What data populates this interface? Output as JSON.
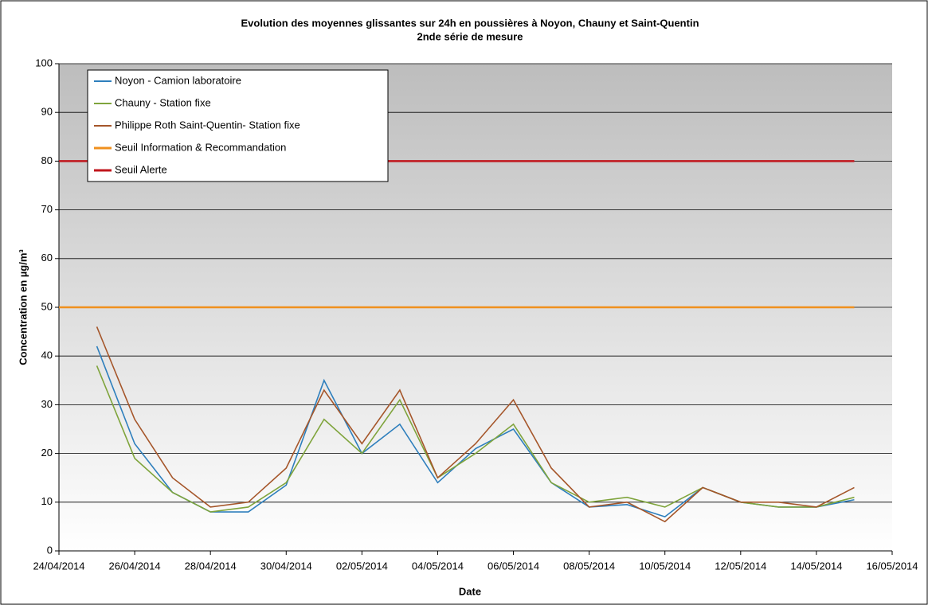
{
  "chart_data": {
    "type": "line",
    "title": "Evolution des moyennes glissantes sur 24h en poussières à Noyon, Chauny et Saint-Quentin",
    "subtitle": "2nde série de mesure",
    "x_label": "Date",
    "y_label": "Concentration en µg/m³",
    "x": [
      "24/04/2014",
      "25/04/2014",
      "26/04/2014",
      "27/04/2014",
      "28/04/2014",
      "29/04/2014",
      "30/04/2014",
      "01/05/2014",
      "02/05/2014",
      "03/05/2014",
      "04/05/2014",
      "05/05/2014",
      "06/05/2014",
      "07/05/2014",
      "08/05/2014",
      "09/05/2014",
      "10/05/2014",
      "11/05/2014",
      "12/05/2014",
      "13/05/2014",
      "14/05/2014",
      "15/05/2014"
    ],
    "series": [
      {
        "name": "Noyon - Camion laboratoire",
        "color": "#2e7fbd",
        "values": [
          null,
          42,
          22,
          12,
          8,
          8,
          13.5,
          35,
          20,
          26,
          14,
          21,
          25,
          14,
          9,
          9.5,
          7,
          13,
          10,
          9,
          9,
          10.5
        ]
      },
      {
        "name": "Chauny - Station fixe",
        "color": "#7fa43c",
        "values": [
          null,
          38,
          19,
          12,
          8,
          9,
          14,
          27,
          20,
          31,
          15,
          20,
          26,
          14,
          10,
          11,
          9,
          13,
          10,
          9,
          9,
          11
        ]
      },
      {
        "name": "Philippe Roth Saint-Quentin- Station fixe",
        "color": "#a5562a",
        "values": [
          null,
          46,
          27,
          15,
          9,
          10,
          17,
          33,
          22,
          33,
          15,
          22,
          31,
          17,
          9,
          10,
          6,
          13,
          10,
          10,
          9,
          13
        ]
      },
      {
        "name": "Seuil Information & Recommandation",
        "color": "#f0901e",
        "values": [
          50,
          50,
          50,
          50,
          50,
          50,
          50,
          50,
          50,
          50,
          50,
          50,
          50,
          50,
          50,
          50,
          50,
          50,
          50,
          50,
          50,
          50
        ]
      },
      {
        "name": "Seuil Alerte",
        "color": "#c0161c",
        "values": [
          80,
          80,
          80,
          80,
          80,
          80,
          80,
          80,
          80,
          80,
          80,
          80,
          80,
          80,
          80,
          80,
          80,
          80,
          80,
          80,
          80,
          80
        ]
      }
    ],
    "xlim": [
      "24/04/2014",
      "16/05/2014"
    ],
    "xticks": [
      "24/04/2014",
      "26/04/2014",
      "28/04/2014",
      "30/04/2014",
      "02/05/2014",
      "04/05/2014",
      "06/05/2014",
      "08/05/2014",
      "10/05/2014",
      "12/05/2014",
      "14/05/2014",
      "16/05/2014"
    ],
    "ylim": [
      0,
      100
    ],
    "yticks": [
      0,
      10,
      20,
      30,
      40,
      50,
      60,
      70,
      80,
      90,
      100
    ],
    "grid": true,
    "legend": "upper left"
  }
}
